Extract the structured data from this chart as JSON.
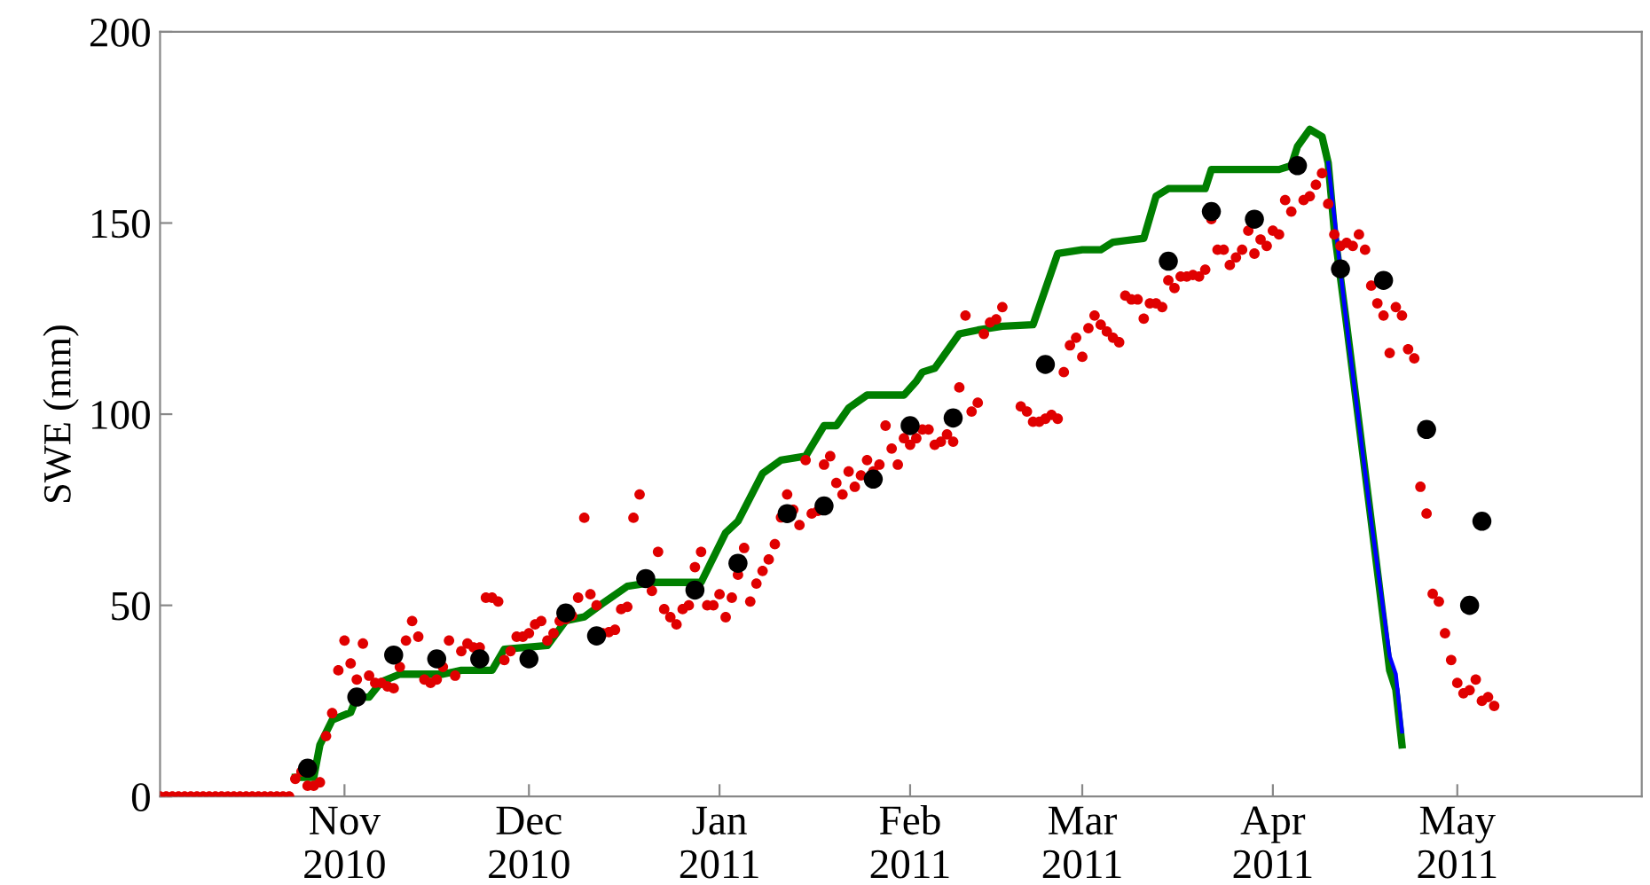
{
  "chart_data": {
    "type": "scatter",
    "ylabel": "SWE (mm)",
    "xlim": [
      "2010-10-02",
      "2011-05-31"
    ],
    "ylim": [
      0,
      200
    ],
    "yticks": [
      0,
      50,
      100,
      150,
      200
    ],
    "xticks": [
      {
        "value": "2010-11-01",
        "label": "Nov\n2010"
      },
      {
        "value": "2010-12-01",
        "label": "Dec\n2010"
      },
      {
        "value": "2011-01-01",
        "label": "Jan\n2011"
      },
      {
        "value": "2011-02-01",
        "label": "Feb\n2011"
      },
      {
        "value": "2011-03-01",
        "label": "Mar\n2011"
      },
      {
        "value": "2011-04-01",
        "label": "Apr\n2011"
      },
      {
        "value": "2011-05-01",
        "label": "May\n2011"
      }
    ],
    "grid": false,
    "legend": false,
    "series": [
      {
        "color": "#e00000",
        "marker": "circle",
        "x": [
          "2010-10-02",
          "2010-10-03",
          "2010-10-04",
          "2010-10-05",
          "2010-10-06",
          "2010-10-07",
          "2010-10-08",
          "2010-10-09",
          "2010-10-10",
          "2010-10-11",
          "2010-10-12",
          "2010-10-13",
          "2010-10-14",
          "2010-10-15",
          "2010-10-16",
          "2010-10-17",
          "2010-10-18",
          "2010-10-19",
          "2010-10-20",
          "2010-10-21",
          "2010-10-22",
          "2010-10-23",
          "2010-10-24",
          "2010-10-25",
          "2010-10-26",
          "2010-10-27",
          "2010-10-28",
          "2010-10-29",
          "2010-10-30",
          "2010-10-31",
          "2010-11-01",
          "2010-11-02",
          "2010-11-03",
          "2010-11-04",
          "2010-11-05",
          "2010-11-06",
          "2010-11-07",
          "2010-11-08",
          "2010-11-09",
          "2010-11-10",
          "2010-11-11",
          "2010-11-12",
          "2010-11-13",
          "2010-11-14",
          "2010-11-15",
          "2010-11-16",
          "2010-11-17",
          "2010-11-18",
          "2010-11-19",
          "2010-11-20",
          "2010-11-21",
          "2010-11-22",
          "2010-11-23",
          "2010-11-24",
          "2010-11-25",
          "2010-11-26",
          "2010-11-27",
          "2010-11-28",
          "2010-11-29",
          "2010-11-30",
          "2010-12-01",
          "2010-12-02",
          "2010-12-03",
          "2010-12-04",
          "2010-12-05",
          "2010-12-06",
          "2010-12-07",
          "2010-12-08",
          "2010-12-09",
          "2010-12-10",
          "2010-12-11",
          "2010-12-12",
          "2010-12-13",
          "2010-12-14",
          "2010-12-15",
          "2010-12-16",
          "2010-12-17",
          "2010-12-18",
          "2010-12-19",
          "2010-12-21",
          "2010-12-22",
          "2010-12-23",
          "2010-12-24",
          "2010-12-25",
          "2010-12-26",
          "2010-12-27",
          "2010-12-28",
          "2010-12-29",
          "2010-12-30",
          "2010-12-31",
          "2011-01-01",
          "2011-01-02",
          "2011-01-03",
          "2011-01-04",
          "2011-01-05",
          "2011-01-06",
          "2011-01-07",
          "2011-01-08",
          "2011-01-09",
          "2011-01-10",
          "2011-01-11",
          "2011-01-12",
          "2011-01-13",
          "2011-01-14",
          "2011-01-15",
          "2011-01-16",
          "2011-01-17",
          "2011-01-18",
          "2011-01-19",
          "2011-01-20",
          "2011-01-21",
          "2011-01-22",
          "2011-01-23",
          "2011-01-24",
          "2011-01-25",
          "2011-01-26",
          "2011-01-27",
          "2011-01-28",
          "2011-01-29",
          "2011-01-30",
          "2011-01-31",
          "2011-02-01",
          "2011-02-02",
          "2011-02-03",
          "2011-02-04",
          "2011-02-05",
          "2011-02-06",
          "2011-02-07",
          "2011-02-08",
          "2011-02-09",
          "2011-02-10",
          "2011-02-11",
          "2011-02-12",
          "2011-02-13",
          "2011-02-14",
          "2011-02-15",
          "2011-02-16",
          "2011-02-19",
          "2011-02-20",
          "2011-02-21",
          "2011-02-22",
          "2011-02-23",
          "2011-02-24",
          "2011-02-25",
          "2011-02-26",
          "2011-02-27",
          "2011-02-28",
          "2011-03-01",
          "2011-03-02",
          "2011-03-03",
          "2011-03-04",
          "2011-03-05",
          "2011-03-06",
          "2011-03-07",
          "2011-03-08",
          "2011-03-09",
          "2011-03-10",
          "2011-03-11",
          "2011-03-12",
          "2011-03-13",
          "2011-03-14",
          "2011-03-15",
          "2011-03-16",
          "2011-03-17",
          "2011-03-18",
          "2011-03-19",
          "2011-03-20",
          "2011-03-21",
          "2011-03-22",
          "2011-03-23",
          "2011-03-24",
          "2011-03-25",
          "2011-03-26",
          "2011-03-27",
          "2011-03-28",
          "2011-03-29",
          "2011-03-30",
          "2011-03-31",
          "2011-04-01",
          "2011-04-02",
          "2011-04-03",
          "2011-04-04",
          "2011-04-06",
          "2011-04-07",
          "2011-04-08",
          "2011-04-09",
          "2011-04-10",
          "2011-04-11",
          "2011-04-12",
          "2011-04-13",
          "2011-04-14",
          "2011-04-15",
          "2011-04-16",
          "2011-04-17",
          "2011-04-18",
          "2011-04-19",
          "2011-04-20",
          "2011-04-21",
          "2011-04-22",
          "2011-04-23",
          "2011-04-24",
          "2011-04-25",
          "2011-04-26",
          "2011-04-27",
          "2011-04-28",
          "2011-04-29",
          "2011-04-30",
          "2011-05-01",
          "2011-05-02",
          "2011-05-03",
          "2011-05-04",
          "2011-05-05",
          "2011-05-06",
          "2011-05-07"
        ],
        "values": [
          0,
          0,
          0,
          0,
          0,
          0,
          0,
          0,
          0,
          0,
          0,
          0,
          0,
          0,
          0,
          0,
          0,
          0,
          0,
          0,
          0,
          0,
          4.6,
          6.5,
          2.8,
          2.8,
          3.7,
          15.8,
          21.8,
          33,
          40.8,
          34.8,
          30.6,
          40,
          31.6,
          29.7,
          29.7,
          28.8,
          28.3,
          33.9,
          40.8,
          45.9,
          41.8,
          30.6,
          29.7,
          30.6,
          33.9,
          40.8,
          31.6,
          38,
          40,
          39,
          39,
          52,
          52,
          51,
          35.7,
          38,
          41.8,
          41.8,
          42.7,
          45,
          45.9,
          40.8,
          42.7,
          45.9,
          46.4,
          47.3,
          52,
          72.9,
          52.9,
          50,
          42.7,
          43,
          43.6,
          49,
          49.6,
          72.9,
          79,
          53.8,
          64,
          49,
          46.9,
          45,
          49,
          50,
          60,
          64,
          50,
          50,
          52.9,
          46.9,
          52,
          58,
          65,
          51,
          55.7,
          59,
          62,
          66,
          73,
          79,
          75,
          71,
          88,
          74,
          74.7,
          86.8,
          89,
          82,
          79,
          85,
          81,
          84,
          88,
          85,
          86.8,
          97,
          91,
          86.8,
          93.7,
          92,
          93.7,
          96,
          96,
          92,
          92.8,
          94.7,
          92.8,
          107,
          125.8,
          100.7,
          103,
          121,
          124,
          124.8,
          128,
          102,
          100.7,
          98,
          98,
          98.8,
          99.8,
          98.8,
          111,
          118,
          120,
          115,
          122.5,
          125.8,
          123.4,
          121.6,
          120,
          118.8,
          131,
          130,
          130,
          125,
          129,
          129,
          128,
          135,
          133,
          136,
          136,
          136.4,
          136,
          137.8,
          151,
          143,
          143,
          139,
          141,
          143,
          148,
          142,
          145.7,
          144,
          148,
          147,
          156,
          153,
          156,
          157,
          160,
          163,
          155,
          147,
          144,
          144.8,
          144,
          147,
          143,
          133.6,
          129,
          125.8,
          116,
          128,
          125.8,
          117,
          114.6,
          81,
          74,
          53,
          51,
          42.7,
          35.7,
          29.7,
          27,
          27.8,
          30.6,
          25,
          26,
          23.7
        ]
      },
      {
        "type": "line",
        "color": "#0000ff",
        "marker": "none",
        "line_style": "solid",
        "x": [
          "2011-04-10",
          "2011-04-13",
          "2011-04-17",
          "2011-04-20",
          "2011-04-21",
          "2011-04-22"
        ],
        "values": [
          165.7,
          123.4,
          72,
          36.7,
          32,
          17
        ]
      },
      {
        "type": "line",
        "color": "#007f00",
        "marker": "none",
        "line_style": "solid",
        "x": [
          "2010-10-24",
          "2010-10-27",
          "2010-10-28",
          "2010-10-30",
          "2010-11-02",
          "2010-11-03",
          "2010-11-05",
          "2010-11-07",
          "2010-11-10",
          "2010-11-17",
          "2010-11-20",
          "2010-11-25",
          "2010-11-27",
          "2010-12-04",
          "2010-12-07",
          "2010-12-10",
          "2010-12-13",
          "2010-12-17",
          "2010-12-21",
          "2010-12-29",
          "2011-01-02",
          "2011-01-04",
          "2011-01-08",
          "2011-01-11",
          "2011-01-15",
          "2011-01-18",
          "2011-01-20",
          "2011-01-22",
          "2011-01-25",
          "2011-01-31",
          "2011-02-02",
          "2011-02-03",
          "2011-02-05",
          "2011-02-09",
          "2011-02-12",
          "2011-02-16",
          "2011-02-21",
          "2011-02-25",
          "2011-03-01",
          "2011-03-04",
          "2011-03-06",
          "2011-03-11",
          "2011-03-13",
          "2011-03-15",
          "2011-03-21",
          "2011-03-22",
          "2011-04-02",
          "2011-04-04",
          "2011-04-05",
          "2011-04-07",
          "2011-04-09",
          "2011-04-10",
          "2011-04-11",
          "2011-04-13",
          "2011-04-17",
          "2011-04-20",
          "2011-04-21",
          "2011-04-22"
        ],
        "values": [
          5,
          5,
          13.5,
          20,
          22,
          26,
          26,
          30,
          32,
          32,
          33,
          33,
          38.5,
          39.5,
          46,
          47,
          50.5,
          55,
          56,
          56,
          69,
          72,
          84.5,
          88,
          89,
          97,
          97,
          101.6,
          105,
          105,
          108.6,
          111,
          112,
          121,
          122,
          123,
          123.4,
          142,
          143,
          143,
          145,
          146,
          157,
          159,
          159,
          164,
          164,
          165,
          170,
          174.5,
          172.6,
          165.7,
          148,
          123.4,
          72,
          33,
          28,
          13.5
        ]
      },
      {
        "color": "#000000",
        "marker": "circle",
        "x": [
          "2010-10-26",
          "2010-11-03",
          "2010-11-09",
          "2010-11-16",
          "2010-11-23",
          "2010-12-01",
          "2010-12-07",
          "2010-12-12",
          "2010-12-20",
          "2010-12-28",
          "2011-01-04",
          "2011-01-12",
          "2011-01-18",
          "2011-01-26",
          "2011-02-01",
          "2011-02-08",
          "2011-02-23",
          "2011-03-15",
          "2011-03-22",
          "2011-03-29",
          "2011-04-05",
          "2011-04-12",
          "2011-04-19",
          "2011-04-26",
          "2011-05-03",
          "2011-05-05"
        ],
        "values": [
          7.4,
          26,
          37,
          36,
          36,
          36,
          48,
          42,
          57,
          54,
          61,
          74,
          76,
          83,
          97,
          99,
          113,
          140,
          153,
          151,
          165,
          138,
          135,
          96,
          50,
          72
        ]
      }
    ]
  }
}
